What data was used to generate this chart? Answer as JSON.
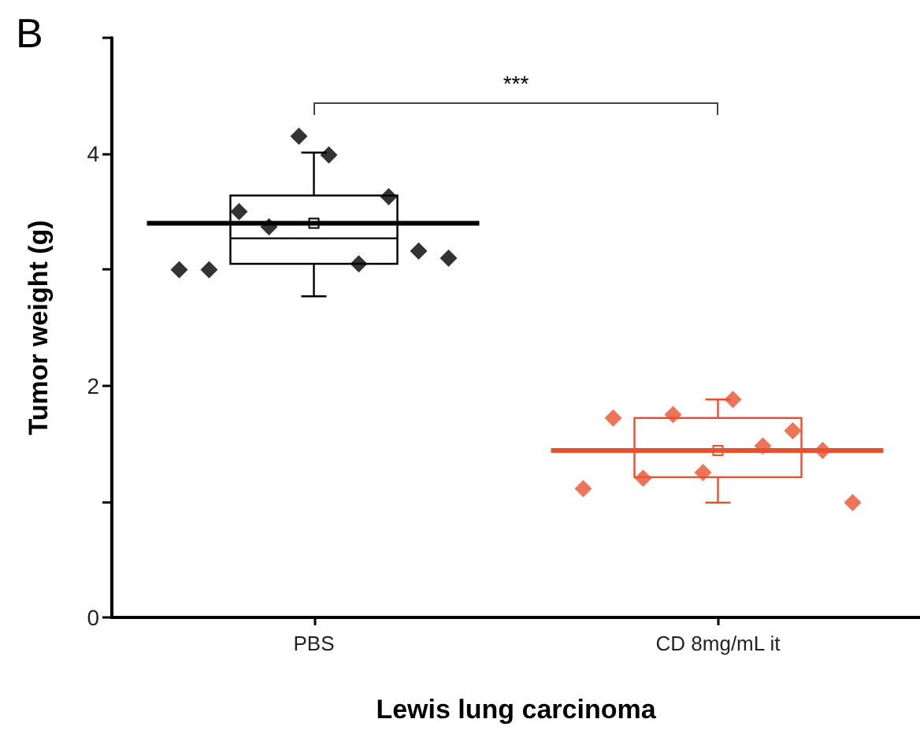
{
  "chart_data": {
    "type": "box",
    "xlabel": "Lewis lung carcinoma",
    "ylabel": "Tumor weight (g)",
    "annotations": [
      "B",
      "***"
    ],
    "categories": [
      "PBS",
      "CD 8mg/mL it"
    ],
    "colors": [
      "#000000",
      "#e8502f"
    ],
    "boxes": [
      {
        "low": 2.77,
        "q1": 3.05,
        "median": 3.27,
        "q3": 3.64,
        "high": 4.01,
        "mean": 3.4
      },
      {
        "low": 0.99,
        "q1": 1.21,
        "median": 1.45,
        "q3": 1.72,
        "high": 1.88,
        "mean": 1.44
      }
    ],
    "series": [
      {
        "type": "scatter",
        "color": "#000000",
        "x": [
          "PBS",
          "PBS",
          "PBS",
          "PBS",
          "PBS",
          "PBS",
          "PBS",
          "PBS",
          "PBS",
          "PBS"
        ],
        "values": [
          3.0,
          3.0,
          3.5,
          3.37,
          4.15,
          3.99,
          3.05,
          3.63,
          3.16,
          3.1
        ]
      },
      {
        "type": "scatter",
        "color": "#e8502f",
        "x": [
          "CD 8mg/mL it",
          "CD 8mg/mL it",
          "CD 8mg/mL it",
          "CD 8mg/mL it",
          "CD 8mg/mL it",
          "CD 8mg/mL it",
          "CD 8mg/mL it",
          "CD 8mg/mL it",
          "CD 8mg/mL it",
          "CD 8mg/mL it"
        ],
        "values": [
          1.11,
          1.72,
          1.2,
          1.75,
          1.25,
          1.88,
          1.48,
          1.61,
          1.44,
          0.99
        ]
      }
    ],
    "ref_lines": [
      {
        "axis": "y",
        "value": 3.4,
        "color": "#000000"
      },
      {
        "axis": "y",
        "value": 1.44,
        "color": "#e8502f"
      }
    ],
    "marker": "diamond",
    "grid": false,
    "ylim": [
      0,
      5
    ],
    "yticks": [
      0,
      {
        "value": 1,
        "label": null
      },
      2,
      {
        "value": 3,
        "label": null
      },
      4,
      {
        "value": 5,
        "label": null
      }
    ]
  }
}
